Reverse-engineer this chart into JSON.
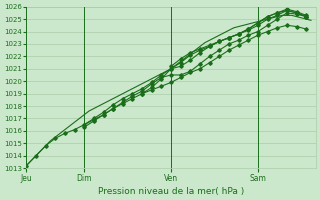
{
  "title": "Pression niveau de la mer( hPa )",
  "background_color": "#cce8cc",
  "grid_color": "#aaccaa",
  "line_color": "#1a6e1a",
  "text_color": "#1a6e1a",
  "ylim": [
    1013,
    1026
  ],
  "xtick_labels": [
    "Jeu",
    "Dim",
    "Ven",
    "Sam"
  ],
  "xtick_positions": [
    0,
    48,
    120,
    192
  ],
  "vline_positions": [
    0,
    48,
    120,
    192
  ],
  "total_points": 240,
  "series": [
    {
      "x": [
        0,
        4,
        8,
        12,
        16,
        20,
        24,
        28,
        32,
        36,
        40,
        44,
        48,
        52,
        56,
        60,
        64,
        68,
        72,
        76,
        80,
        84,
        88,
        92,
        96,
        100,
        104,
        108,
        112,
        116,
        120,
        124,
        128,
        132,
        136,
        140,
        144,
        148,
        152,
        156,
        160,
        164,
        168,
        172,
        176,
        180,
        184,
        188,
        192,
        196,
        200,
        204,
        208,
        212,
        216,
        220,
        224,
        228,
        232,
        236
      ],
      "y": [
        1013.2,
        1013.6,
        1014.0,
        1014.4,
        1014.8,
        1015.2,
        1015.5,
        1015.8,
        1016.1,
        1016.4,
        1016.7,
        1017.0,
        1017.3,
        1017.6,
        1017.8,
        1018.0,
        1018.2,
        1018.4,
        1018.6,
        1018.8,
        1019.0,
        1019.2,
        1019.4,
        1019.6,
        1019.8,
        1020.0,
        1020.2,
        1020.4,
        1020.6,
        1020.8,
        1021.0,
        1021.3,
        1021.6,
        1021.9,
        1022.2,
        1022.5,
        1022.8,
        1023.1,
        1023.3,
        1023.5,
        1023.7,
        1023.9,
        1024.1,
        1024.3,
        1024.4,
        1024.5,
        1024.6,
        1024.7,
        1024.8,
        1024.9,
        1025.0,
        1025.1,
        1025.2,
        1025.3,
        1025.3,
        1025.3,
        1025.2,
        1025.1,
        1025.0,
        1024.9
      ],
      "marker": false
    },
    {
      "x": [
        0,
        8,
        16,
        24,
        32,
        40,
        48,
        56,
        64,
        72,
        80,
        88,
        96,
        104,
        112,
        120,
        128,
        136,
        144,
        152,
        160,
        168,
        176,
        184,
        192,
        200,
        208,
        216,
        224,
        232
      ],
      "y": [
        1013.2,
        1014.0,
        1014.8,
        1015.4,
        1015.8,
        1016.1,
        1016.5,
        1016.9,
        1017.3,
        1017.8,
        1018.2,
        1018.6,
        1019.0,
        1019.3,
        1019.6,
        1019.9,
        1020.3,
        1020.7,
        1021.0,
        1021.5,
        1022.0,
        1022.5,
        1022.9,
        1023.3,
        1023.7,
        1024.0,
        1024.3,
        1024.5,
        1024.4,
        1024.2
      ],
      "marker": true
    },
    {
      "x": [
        48,
        56,
        64,
        72,
        80,
        88,
        96,
        104,
        112,
        120,
        128,
        136,
        144,
        152,
        160,
        168,
        176,
        184,
        192,
        200,
        208,
        216,
        224,
        232
      ],
      "y": [
        1016.3,
        1016.8,
        1017.3,
        1017.8,
        1018.3,
        1018.8,
        1019.2,
        1019.8,
        1020.3,
        1020.5,
        1020.5,
        1020.8,
        1021.4,
        1022.0,
        1022.5,
        1023.0,
        1023.3,
        1023.7,
        1024.0,
        1024.5,
        1025.0,
        1025.5,
        1025.4,
        1025.2
      ],
      "marker": true
    },
    {
      "x": [
        48,
        56,
        64,
        72,
        80,
        88,
        96,
        104,
        112,
        120,
        128,
        136,
        144,
        152,
        160,
        168,
        176,
        184,
        192,
        200,
        208,
        216,
        224,
        232
      ],
      "y": [
        1016.5,
        1017.0,
        1017.5,
        1018.1,
        1018.6,
        1019.0,
        1019.4,
        1019.9,
        1020.5,
        1021.0,
        1021.2,
        1021.7,
        1022.3,
        1022.8,
        1023.2,
        1023.5,
        1023.8,
        1024.2,
        1024.7,
        1025.2,
        1025.5,
        1025.8,
        1025.6,
        1025.3
      ],
      "marker": true
    },
    {
      "x": [
        96,
        104,
        112,
        120,
        128,
        136,
        144,
        152,
        160,
        168,
        176,
        184,
        192,
        200,
        208,
        216,
        224,
        232
      ],
      "y": [
        1019.0,
        1019.5,
        1020.2,
        1021.0,
        1021.5,
        1022.1,
        1022.5,
        1022.8,
        1023.2,
        1023.5,
        1023.8,
        1024.2,
        1024.7,
        1025.2,
        1025.5,
        1025.7,
        1025.5,
        1025.2
      ],
      "marker": true
    },
    {
      "x": [
        120,
        128,
        136,
        144,
        152,
        160,
        168,
        176,
        184,
        192,
        200,
        208,
        216,
        224,
        232
      ],
      "y": [
        1021.2,
        1021.8,
        1022.3,
        1022.6,
        1022.9,
        1023.2,
        1023.5,
        1023.8,
        1024.1,
        1024.5,
        1025.0,
        1025.3,
        1025.7,
        1025.5,
        1025.2
      ],
      "marker": true
    }
  ]
}
